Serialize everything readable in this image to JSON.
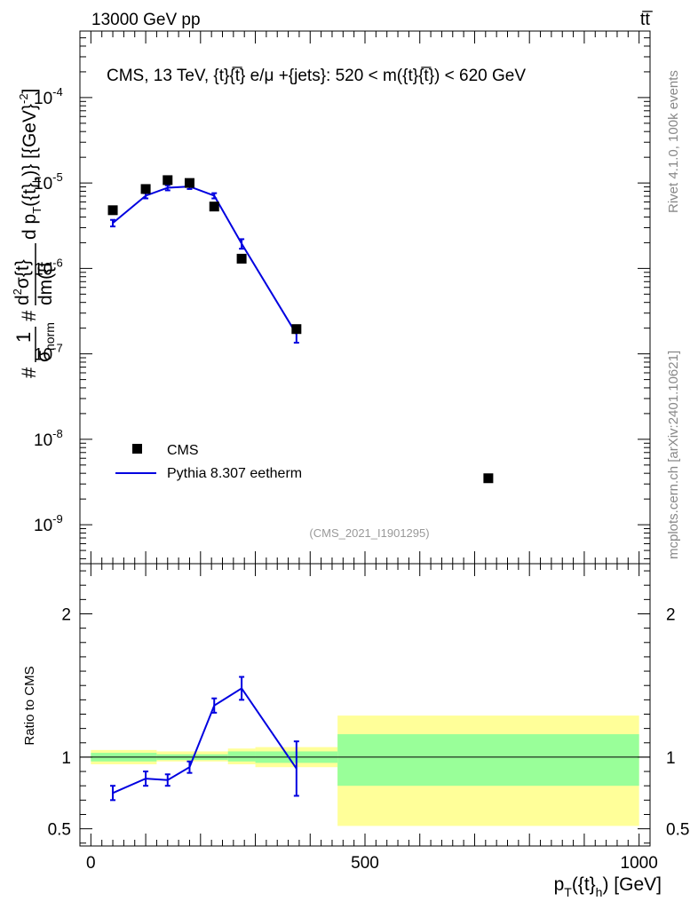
{
  "header": {
    "left": "13000 GeV pp",
    "right": "tt̅"
  },
  "side_labels": {
    "rivet": "Rivet 4.1.0,  100k events",
    "mcplots": "mcplots.cern.ch [arXiv:2401.10621]"
  },
  "colors": {
    "mc_line": "#0000e0",
    "data_marker": "#000000",
    "band_inner": "#99ff99",
    "band_outer": "#ffff99"
  },
  "chart_data": [
    {
      "type": "scatter",
      "title": "CMS, 13 TeV, {t}{t̅} e/μ +{jets}: 520 < m({t}{t̅}) < 620 GeV",
      "ylabel": "#1/σnorm # d²σ / d m({t}{t̅}) d pT({t}h) [{GeV}⁻²]",
      "ylabel_parts": {
        "frac1_num": "1",
        "frac1_den_sym": "σ",
        "frac1_den_sub": "norm",
        "hash": "#",
        "frac2_num_d": "d",
        "frac2_num_sup": "2",
        "frac2_num_sym": "σ",
        "frac2_num_tail": "{t}",
        "frac2_den": "dm({t",
        "tail_a": "d p",
        "tail_sub1": "T",
        "tail_b": "({t}",
        "tail_sub2": "h",
        "tail_c": ")} [{GeV}",
        "tail_sup": "-2",
        "tail_d": "]"
      },
      "yscale": "log",
      "ylim": [
        3.5e-10,
        0.0006
      ],
      "xlim": [
        -20,
        1020
      ],
      "y_ticks": [
        {
          "value": 1e-09,
          "base": "10",
          "exp": "-9"
        },
        {
          "value": 1e-08,
          "base": "10",
          "exp": "-8"
        },
        {
          "value": 1e-07,
          "base": "10",
          "exp": "-7"
        },
        {
          "value": 1e-06,
          "base": "10",
          "exp": "-6"
        },
        {
          "value": 1e-05,
          "base": "10",
          "exp": "-5"
        },
        {
          "value": 0.0001,
          "base": "10",
          "exp": "-4"
        }
      ],
      "watermark": "(CMS_2021_I1901295)",
      "legend": {
        "position": "bottom-left",
        "entries": [
          "CMS",
          "Pythia 8.307 eetherm"
        ]
      },
      "series": [
        {
          "name": "CMS",
          "kind": "markers",
          "x": [
            40,
            100,
            140,
            180,
            225,
            275,
            375,
            725
          ],
          "y": [
            4.8e-06,
            8.5e-06,
            1.08e-05,
            1e-05,
            5.3e-06,
            1.3e-06,
            1.95e-07,
            3.5e-09
          ]
        },
        {
          "name": "Pythia 8.307 eetherm",
          "kind": "line",
          "x": [
            40,
            100,
            140,
            180,
            225,
            275,
            375
          ],
          "y": [
            3.4e-06,
            7.1e-06,
            8.8e-06,
            9.1e-06,
            7.1e-06,
            1.95e-06,
            1.7e-07
          ],
          "y_err": [
            3e-07,
            5e-07,
            6e-07,
            6e-07,
            5e-07,
            2.5e-07,
            3.5e-08
          ]
        }
      ]
    },
    {
      "type": "line",
      "ylabel": "Ratio to CMS",
      "xlabel": "pT({t}h) [GeV]",
      "xlabel_parts": {
        "a": "p",
        "sub1": "T",
        "b": "({t}",
        "sub2": "h",
        "c": ") [GeV]"
      },
      "xlim": [
        -20,
        1020
      ],
      "ylim": [
        0.38,
        2.35
      ],
      "y_ticks": [
        0.5,
        1,
        2
      ],
      "x_ticks": [
        0,
        500,
        1000
      ],
      "reference_line": 1,
      "bands": [
        {
          "x0": 0,
          "x1": 120,
          "inner": [
            0.97,
            1.03
          ],
          "outer": [
            0.95,
            1.05
          ]
        },
        {
          "x0": 120,
          "x1": 250,
          "inner": [
            0.98,
            1.02
          ],
          "outer": [
            0.97,
            1.04
          ]
        },
        {
          "x0": 250,
          "x1": 300,
          "inner": [
            0.97,
            1.04
          ],
          "outer": [
            0.95,
            1.06
          ]
        },
        {
          "x0": 300,
          "x1": 450,
          "inner": [
            0.96,
            1.04
          ],
          "outer": [
            0.93,
            1.07
          ]
        },
        {
          "x0": 450,
          "x1": 1000,
          "inner": [
            0.8,
            1.16
          ],
          "outer": [
            0.52,
            1.29
          ]
        }
      ],
      "series": [
        {
          "name": "Pythia 8.307 eetherm / CMS",
          "x": [
            40,
            100,
            140,
            180,
            225,
            275,
            375
          ],
          "y": [
            0.75,
            0.85,
            0.84,
            0.93,
            1.36,
            1.48,
            0.92
          ],
          "y_err": [
            0.05,
            0.05,
            0.04,
            0.04,
            0.05,
            0.08,
            0.19
          ]
        }
      ]
    }
  ]
}
